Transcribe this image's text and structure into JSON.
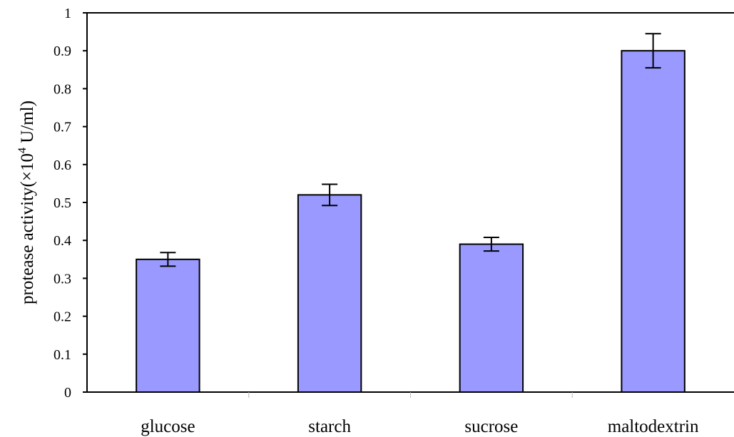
{
  "chart_data": {
    "type": "bar",
    "title": "",
    "xlabel": "",
    "ylabel": {
      "prefix": "protease activity(×10",
      "superscript": "4",
      "suffix": " U/ml)"
    },
    "categories": [
      "glucose",
      "starch",
      "sucrose",
      "maltodextrin"
    ],
    "series": [
      {
        "values": [
          0.35,
          0.52,
          0.39,
          0.9
        ],
        "error": [
          0.018,
          0.028,
          0.018,
          0.045
        ]
      }
    ],
    "ylim": [
      0,
      1
    ],
    "yticks": [
      0,
      0.1,
      0.2,
      0.3,
      0.4,
      0.5,
      0.6,
      0.7,
      0.8,
      0.9,
      1
    ],
    "ytick_labels": [
      "0",
      "0.1",
      "0.2",
      "0.3",
      "0.4",
      "0.5",
      "0.6",
      "0.7",
      "0.8",
      "0.9",
      "1"
    ],
    "grid": false,
    "legend": "none",
    "colors": {
      "bar_fill": "#9999ff",
      "bar_stroke": "#000000",
      "axis": "#000000",
      "minor_tick": "#bbbbbb"
    }
  }
}
